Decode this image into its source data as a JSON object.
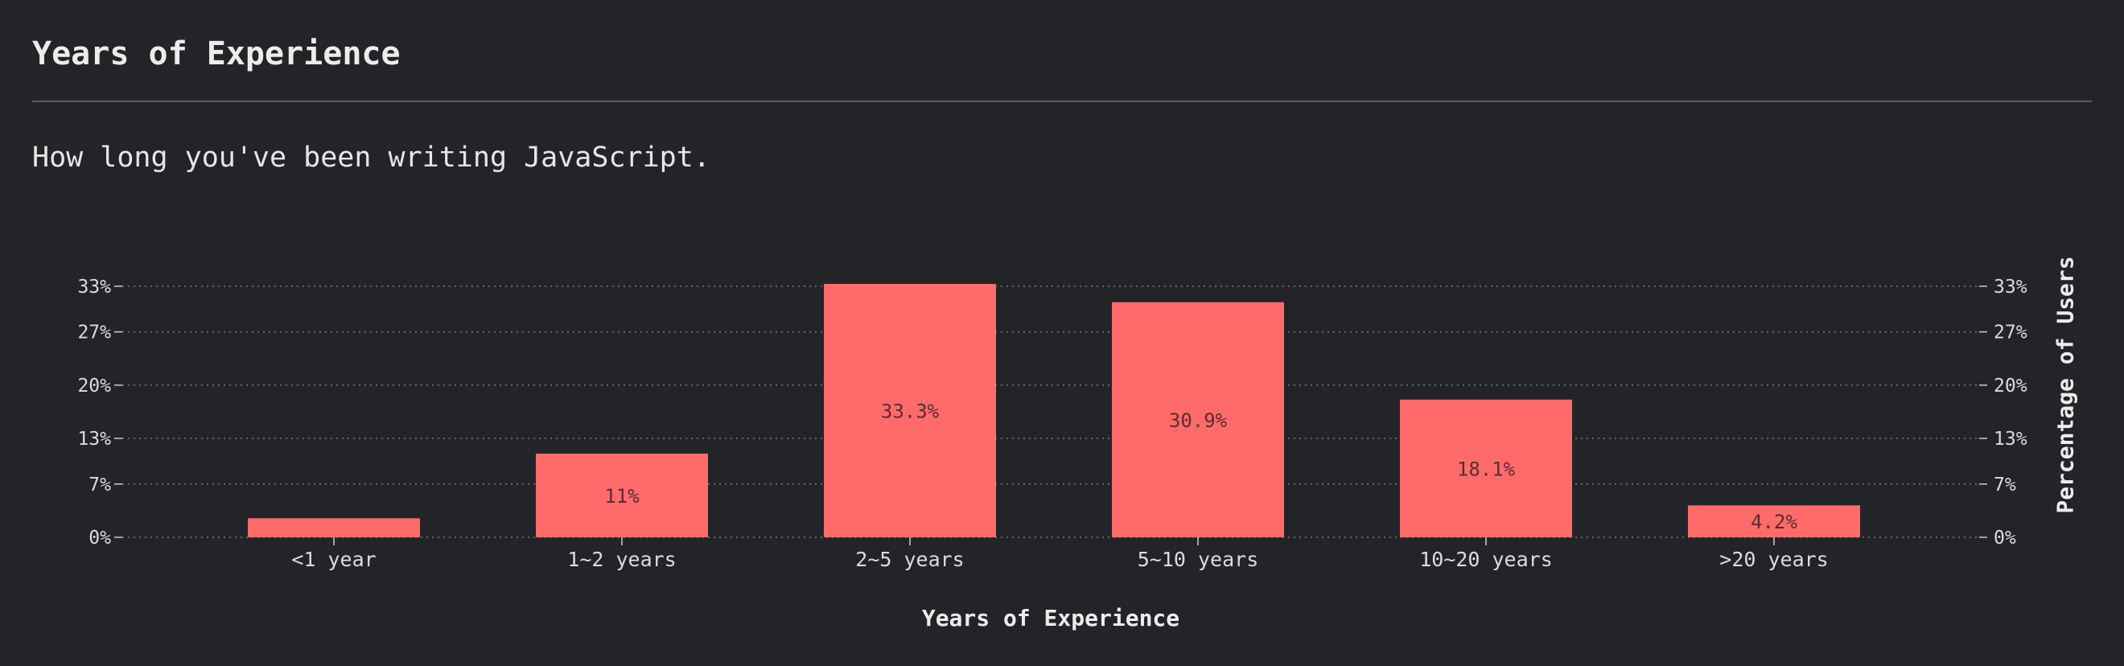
{
  "header": {
    "title": "Years of Experience",
    "subtitle": "How long you've been writing JavaScript."
  },
  "colors": {
    "background": "#232428",
    "bar": "#ff6b6b",
    "bar_label": "#5a2c30",
    "grid": "#7a7b80"
  },
  "chart_data": {
    "type": "bar",
    "categories": [
      "<1 year",
      "1~2 years",
      "2~5 years",
      "5~10 years",
      "10~20 years",
      ">20 years"
    ],
    "values": [
      2.5,
      11,
      33.3,
      30.9,
      18.1,
      4.2
    ],
    "value_labels": [
      "",
      "11%",
      "33.3%",
      "30.9%",
      "18.1%",
      "4.2%"
    ],
    "xlabel": "Years of Experience",
    "ylabel": "Percentage of Users",
    "y_ticks": [
      0,
      7,
      13,
      20,
      27,
      33
    ],
    "y_tick_labels": [
      "0%",
      "7%",
      "13%",
      "20%",
      "27%",
      "33%"
    ],
    "ylim": [
      0,
      33.3
    ],
    "grid": true,
    "y_axis": "both sides"
  }
}
